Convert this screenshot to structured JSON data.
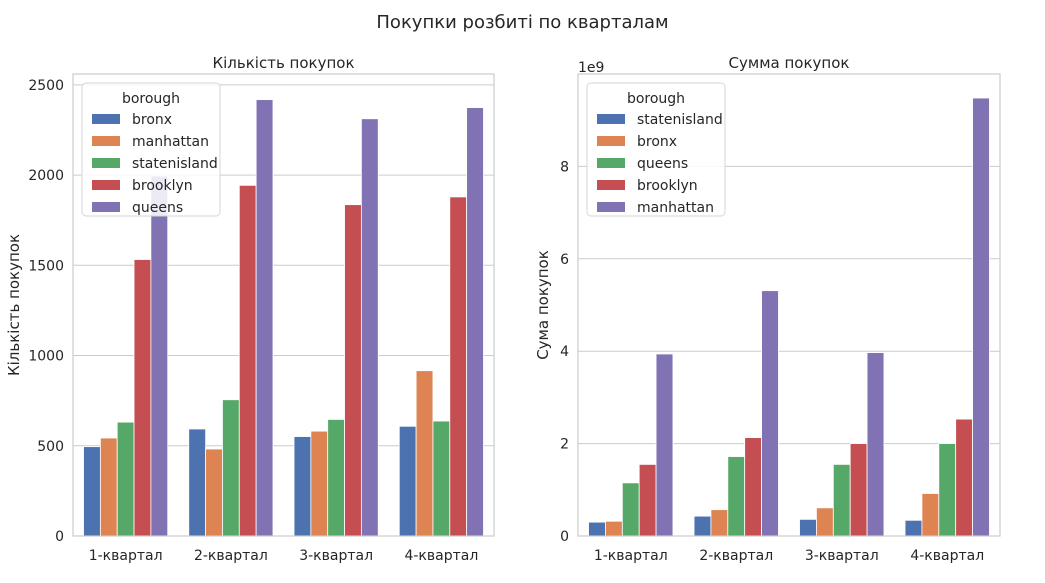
{
  "suptitle": "Покупки розбиті по кварталам",
  "colors": {
    "blue": "#4c72b0",
    "orange": "#dd8452",
    "green": "#55a868",
    "red": "#c44e52",
    "purple": "#8172b3",
    "grid": "#cccccc",
    "text": "#262626"
  },
  "chart_data": [
    {
      "type": "bar",
      "title": "Кількість покупок",
      "xlabel": "",
      "ylabel": "Кількість покупок",
      "categories": [
        "1-квартал",
        "2-квартал",
        "3-квартал",
        "4-квартал"
      ],
      "ylim": [
        0,
        2560
      ],
      "yticks": [
        0,
        500,
        1000,
        1500,
        2000,
        2500
      ],
      "ytick_labels": [
        "0",
        "500",
        "1000",
        "1500",
        "2000",
        "2500"
      ],
      "offset_label": "",
      "grid": "horizontal",
      "legend": {
        "title": "borough",
        "placement": "top-left"
      },
      "series": [
        {
          "name": "bronx",
          "color": "blue",
          "values": [
            495,
            593,
            551,
            608
          ]
        },
        {
          "name": "manhattan",
          "color": "orange",
          "values": [
            543,
            482,
            581,
            916
          ]
        },
        {
          "name": "statenisland",
          "color": "green",
          "values": [
            631,
            755,
            646,
            637
          ]
        },
        {
          "name": "brooklyn",
          "color": "red",
          "values": [
            1532,
            1943,
            1836,
            1879
          ]
        },
        {
          "name": "queens",
          "color": "purple",
          "values": [
            1995,
            2418,
            2312,
            2374
          ]
        }
      ]
    },
    {
      "type": "bar",
      "title": "Сумма покупок",
      "xlabel": "",
      "ylabel": "Сума покупок",
      "categories": [
        "1-квартал",
        "2-квартал",
        "3-квартал",
        "4-квартал"
      ],
      "ylim": [
        0,
        10.0
      ],
      "yticks": [
        0,
        2,
        4,
        6,
        8
      ],
      "ytick_labels": [
        "0",
        "2",
        "4",
        "6",
        "8"
      ],
      "offset_label": "1e9",
      "grid": "horizontal",
      "legend": {
        "title": "borough",
        "placement": "top-left"
      },
      "series": [
        {
          "name": "statenisland",
          "color": "blue",
          "values": [
            0.3,
            0.43,
            0.36,
            0.34
          ]
        },
        {
          "name": "bronx",
          "color": "orange",
          "values": [
            0.32,
            0.57,
            0.61,
            0.92
          ]
        },
        {
          "name": "queens",
          "color": "green",
          "values": [
            1.15,
            1.72,
            1.55,
            2.0
          ]
        },
        {
          "name": "brooklyn",
          "color": "red",
          "values": [
            1.55,
            2.13,
            2.0,
            2.53
          ]
        },
        {
          "name": "manhattan",
          "color": "purple",
          "values": [
            3.94,
            5.31,
            3.97,
            9.48
          ]
        }
      ]
    }
  ]
}
